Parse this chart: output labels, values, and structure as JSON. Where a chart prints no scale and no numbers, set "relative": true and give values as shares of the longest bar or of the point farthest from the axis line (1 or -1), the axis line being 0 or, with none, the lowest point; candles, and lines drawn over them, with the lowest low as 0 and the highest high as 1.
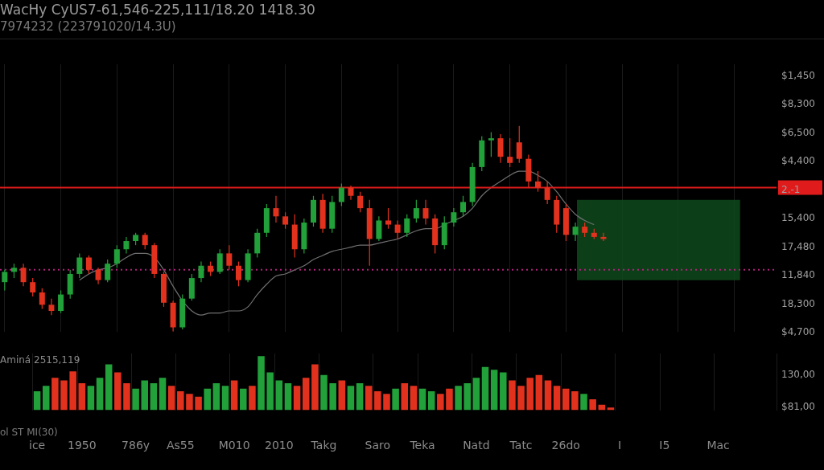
{
  "chart_data": [
    {
      "type": "candlestick",
      "relative": true,
      "title": "WacHy CyUS7-61,546-225,111/18.20 1418.30",
      "subtitle": "7974232 (223791020/14.3U)",
      "categories": [
        null,
        null,
        null,
        null,
        null,
        null,
        null,
        null,
        null,
        null,
        null,
        null,
        null,
        null,
        null,
        null,
        null,
        null,
        null,
        null,
        null,
        null,
        null,
        null,
        null,
        null,
        null,
        null,
        null,
        null,
        null,
        null,
        null,
        null,
        null,
        null,
        null,
        null,
        null,
        null,
        null,
        null,
        null,
        null,
        null,
        null,
        null,
        null,
        null,
        null,
        null,
        null,
        null,
        null,
        null,
        null,
        null,
        null,
        null,
        null,
        null,
        null,
        null,
        null,
        null,
        null,
        null,
        null,
        null,
        null,
        null,
        null,
        null,
        null,
        null,
        null,
        null,
        null,
        null,
        null,
        null,
        null,
        null
      ],
      "ohlc": [
        [
          0.24,
          0.3,
          0.2,
          0.29
        ],
        [
          0.29,
          0.33,
          0.26,
          0.31
        ],
        [
          0.31,
          0.33,
          0.22,
          0.24
        ],
        [
          0.24,
          0.26,
          0.17,
          0.19
        ],
        [
          0.19,
          0.21,
          0.11,
          0.13
        ],
        [
          0.13,
          0.16,
          0.08,
          0.1
        ],
        [
          0.1,
          0.2,
          0.09,
          0.18
        ],
        [
          0.18,
          0.3,
          0.16,
          0.28
        ],
        [
          0.28,
          0.38,
          0.26,
          0.36
        ],
        [
          0.36,
          0.37,
          0.28,
          0.3
        ],
        [
          0.3,
          0.31,
          0.23,
          0.25
        ],
        [
          0.25,
          0.35,
          0.24,
          0.33
        ],
        [
          0.33,
          0.42,
          0.31,
          0.4
        ],
        [
          0.4,
          0.46,
          0.38,
          0.44
        ],
        [
          0.44,
          0.48,
          0.42,
          0.47
        ],
        [
          0.47,
          0.48,
          0.4,
          0.42
        ],
        [
          0.42,
          0.43,
          0.26,
          0.28
        ],
        [
          0.28,
          0.29,
          0.12,
          0.14
        ],
        [
          0.14,
          0.15,
          0.0,
          0.02
        ],
        [
          0.02,
          0.18,
          0.01,
          0.16
        ],
        [
          0.16,
          0.28,
          0.15,
          0.26
        ],
        [
          0.26,
          0.34,
          0.24,
          0.32
        ],
        [
          0.32,
          0.34,
          0.27,
          0.29
        ],
        [
          0.29,
          0.4,
          0.28,
          0.38
        ],
        [
          0.38,
          0.42,
          0.3,
          0.32
        ],
        [
          0.32,
          0.34,
          0.22,
          0.25
        ],
        [
          0.25,
          0.4,
          0.24,
          0.38
        ],
        [
          0.38,
          0.5,
          0.36,
          0.48
        ],
        [
          0.48,
          0.62,
          0.46,
          0.6
        ],
        [
          0.6,
          0.66,
          0.53,
          0.56
        ],
        [
          0.56,
          0.58,
          0.5,
          0.52
        ],
        [
          0.52,
          0.57,
          0.36,
          0.4
        ],
        [
          0.4,
          0.55,
          0.38,
          0.53
        ],
        [
          0.53,
          0.66,
          0.51,
          0.64
        ],
        [
          0.64,
          0.67,
          0.48,
          0.5
        ],
        [
          0.5,
          0.66,
          0.48,
          0.63
        ],
        [
          0.63,
          0.72,
          0.61,
          0.7
        ],
        [
          0.7,
          0.71,
          0.64,
          0.66
        ],
        [
          0.66,
          0.68,
          0.58,
          0.6
        ],
        [
          0.6,
          0.64,
          0.32,
          0.45
        ],
        [
          0.45,
          0.56,
          0.44,
          0.54
        ],
        [
          0.54,
          0.6,
          0.5,
          0.52
        ],
        [
          0.52,
          0.54,
          0.45,
          0.48
        ],
        [
          0.48,
          0.57,
          0.46,
          0.55
        ],
        [
          0.55,
          0.64,
          0.53,
          0.6
        ],
        [
          0.6,
          0.64,
          0.52,
          0.55
        ],
        [
          0.55,
          0.57,
          0.38,
          0.42
        ],
        [
          0.42,
          0.56,
          0.4,
          0.53
        ],
        [
          0.53,
          0.6,
          0.51,
          0.58
        ],
        [
          0.58,
          0.66,
          0.56,
          0.63
        ],
        [
          0.63,
          0.82,
          0.61,
          0.8
        ],
        [
          0.8,
          0.95,
          0.78,
          0.93
        ],
        [
          0.93,
          0.97,
          0.85,
          0.94
        ],
        [
          0.94,
          0.96,
          0.82,
          0.85
        ],
        [
          0.85,
          0.94,
          0.8,
          0.82
        ],
        [
          0.92,
          1.0,
          0.82,
          0.84
        ],
        [
          0.84,
          0.86,
          0.7,
          0.73
        ],
        [
          0.73,
          0.78,
          0.68,
          0.7
        ],
        [
          0.7,
          0.73,
          0.62,
          0.64
        ],
        [
          0.64,
          0.66,
          0.48,
          0.52
        ],
        [
          0.6,
          0.62,
          0.44,
          0.47
        ],
        [
          0.47,
          0.53,
          0.44,
          0.51
        ],
        [
          0.51,
          0.53,
          0.46,
          0.48
        ],
        [
          0.48,
          0.5,
          0.45,
          0.46
        ],
        [
          0.46,
          0.48,
          0.44,
          0.45
        ],
        null,
        null,
        null,
        null,
        null,
        null,
        null,
        null,
        null,
        null,
        null,
        null,
        null,
        null,
        null,
        null,
        null,
        null
      ],
      "colors": [
        "#22a03a",
        "#22a03a",
        "#e2321e",
        "#e2321e",
        "#e2321e",
        "#e2321e",
        "#22a03a",
        "#22a03a",
        "#22a03a",
        "#e2321e",
        "#e2321e",
        "#22a03a",
        "#22a03a",
        "#22a03a",
        "#22a03a",
        "#e2321e",
        "#e2321e",
        "#e2321e",
        "#e2321e",
        "#22a03a",
        "#22a03a",
        "#22a03a",
        "#e2321e",
        "#22a03a",
        "#e2321e",
        "#e2321e",
        "#22a03a",
        "#22a03a",
        "#22a03a",
        "#e2321e",
        "#e2321e",
        "#e2321e",
        "#22a03a",
        "#22a03a",
        "#e2321e",
        "#22a03a",
        "#22a03a",
        "#e2321e",
        "#e2321e",
        "#e2321e",
        "#22a03a",
        "#e2321e",
        "#e2321e",
        "#22a03a",
        "#22a03a",
        "#e2321e",
        "#e2321e",
        "#22a03a",
        "#22a03a",
        "#22a03a",
        "#22a03a",
        "#22a03a",
        "#22a03a",
        "#e2321e",
        "#e2321e",
        "#e2321e",
        "#e2321e",
        "#e2321e",
        "#e2321e",
        "#e2321e",
        "#e2321e",
        "#22a03a",
        "#e2321e",
        "#e2321e",
        "#e2321e",
        null,
        null,
        null,
        null,
        null,
        null,
        null,
        null,
        null,
        null,
        null,
        null,
        null,
        null,
        null,
        null,
        null,
        null
      ],
      "series": [
        {
          "type": "line",
          "color": "#707070",
          "values": [
            null,
            null,
            null,
            null,
            null,
            null,
            null,
            null,
            0.25,
            0.28,
            0.3,
            0.31,
            0.33,
            0.36,
            0.38,
            0.38,
            0.36,
            0.3,
            0.22,
            0.15,
            0.1,
            0.08,
            0.09,
            0.09,
            0.1,
            0.1,
            0.12,
            0.18,
            0.23,
            0.27,
            0.28,
            0.3,
            0.32,
            0.35,
            0.37,
            0.39,
            0.4,
            0.41,
            0.42,
            0.42,
            0.43,
            0.44,
            0.45,
            0.47,
            0.49,
            0.5,
            0.5,
            0.52,
            0.54,
            0.56,
            0.6,
            0.66,
            0.7,
            0.73,
            0.76,
            0.78,
            0.78,
            0.76,
            0.73,
            0.68,
            0.62,
            0.57,
            0.54,
            0.52,
            null,
            null,
            null,
            null,
            null,
            null,
            null,
            null,
            null,
            null,
            null,
            null,
            null,
            null,
            null,
            null,
            null,
            null,
            null
          ]
        }
      ],
      "ref_lines": [
        {
          "axis": "y",
          "value": 0.7,
          "color": "#e01b1b",
          "line_style": "solid"
        },
        {
          "axis": "y",
          "value": 0.3,
          "color": "#b0207a",
          "line_style": "dotted"
        }
      ],
      "bands": [
        {
          "axis": "y",
          "from": 0.25,
          "to": 0.64,
          "color": "#0e4a1c"
        }
      ],
      "annotations": [
        "$1,450",
        "$8,300",
        "$6,500",
        "$4,400",
        "2.-1",
        "15,400",
        "17,480",
        "11,840",
        "18,300",
        "$4,700"
      ],
      "grid": "x"
    },
    {
      "type": "bar",
      "relative": true,
      "title": "Aminá 2515,119",
      "xlabel": "ol ST MI(30)",
      "categories": [
        "ice",
        null,
        null,
        null,
        null,
        "1950",
        null,
        null,
        null,
        null,
        null,
        "786y",
        null,
        null,
        null,
        null,
        "As55",
        null,
        null,
        null,
        null,
        null,
        "M010",
        null,
        null,
        null,
        null,
        "2010",
        null,
        null,
        null,
        null,
        "Takg",
        null,
        null,
        null,
        null,
        null,
        "Saro",
        null,
        null,
        null,
        null,
        "Teka",
        null,
        null,
        null,
        null,
        null,
        "Natd",
        null,
        null,
        null,
        null,
        "Tatc",
        null,
        null,
        null,
        null,
        "26do",
        null,
        null,
        null,
        null,
        null,
        "I",
        null,
        null,
        null,
        null,
        "I5",
        null,
        null,
        null,
        null,
        null,
        "Mac",
        null,
        null,
        null,
        null,
        null,
        null
      ],
      "values": [
        0.35,
        0.45,
        0.6,
        0.55,
        0.72,
        0.5,
        0.45,
        0.6,
        0.85,
        0.7,
        0.5,
        0.4,
        0.55,
        0.5,
        0.6,
        0.45,
        0.35,
        0.3,
        0.25,
        0.4,
        0.5,
        0.45,
        0.55,
        0.4,
        0.45,
        1.0,
        0.7,
        0.55,
        0.5,
        0.45,
        0.6,
        0.85,
        0.65,
        0.5,
        0.55,
        0.45,
        0.5,
        0.45,
        0.35,
        0.3,
        0.4,
        0.5,
        0.45,
        0.4,
        0.35,
        0.3,
        0.4,
        0.45,
        0.5,
        0.6,
        0.8,
        0.75,
        0.7,
        0.55,
        0.45,
        0.6,
        0.65,
        0.55,
        0.45,
        0.4,
        0.35,
        0.3,
        0.2,
        0.1,
        0.05,
        null,
        null,
        null,
        null,
        null,
        null,
        null,
        null,
        null,
        null,
        null,
        null,
        null,
        null,
        null,
        null,
        null,
        null
      ],
      "colors": [
        "#22a03a",
        "#22a03a",
        "#e2321e",
        "#e2321e",
        "#e2321e",
        "#e2321e",
        "#22a03a",
        "#22a03a",
        "#22a03a",
        "#e2321e",
        "#e2321e",
        "#22a03a",
        "#22a03a",
        "#22a03a",
        "#22a03a",
        "#e2321e",
        "#e2321e",
        "#e2321e",
        "#e2321e",
        "#22a03a",
        "#22a03a",
        "#22a03a",
        "#e2321e",
        "#22a03a",
        "#e2321e",
        "#22a03a",
        "#22a03a",
        "#22a03a",
        "#22a03a",
        "#e2321e",
        "#e2321e",
        "#e2321e",
        "#22a03a",
        "#22a03a",
        "#e2321e",
        "#22a03a",
        "#22a03a",
        "#e2321e",
        "#e2321e",
        "#e2321e",
        "#22a03a",
        "#e2321e",
        "#e2321e",
        "#22a03a",
        "#22a03a",
        "#e2321e",
        "#e2321e",
        "#22a03a",
        "#22a03a",
        "#22a03a",
        "#22a03a",
        "#22a03a",
        "#22a03a",
        "#e2321e",
        "#e2321e",
        "#e2321e",
        "#e2321e",
        "#e2321e",
        "#e2321e",
        "#e2321e",
        "#e2321e",
        "#22a03a",
        "#e2321e",
        "#e2321e",
        "#e2321e",
        null,
        null,
        null,
        null,
        null,
        null,
        null,
        null,
        null,
        null,
        null,
        null,
        null,
        null,
        null,
        null,
        null,
        null
      ],
      "annotations": [
        "130,00",
        "$81,00"
      ],
      "grid": "x"
    }
  ]
}
